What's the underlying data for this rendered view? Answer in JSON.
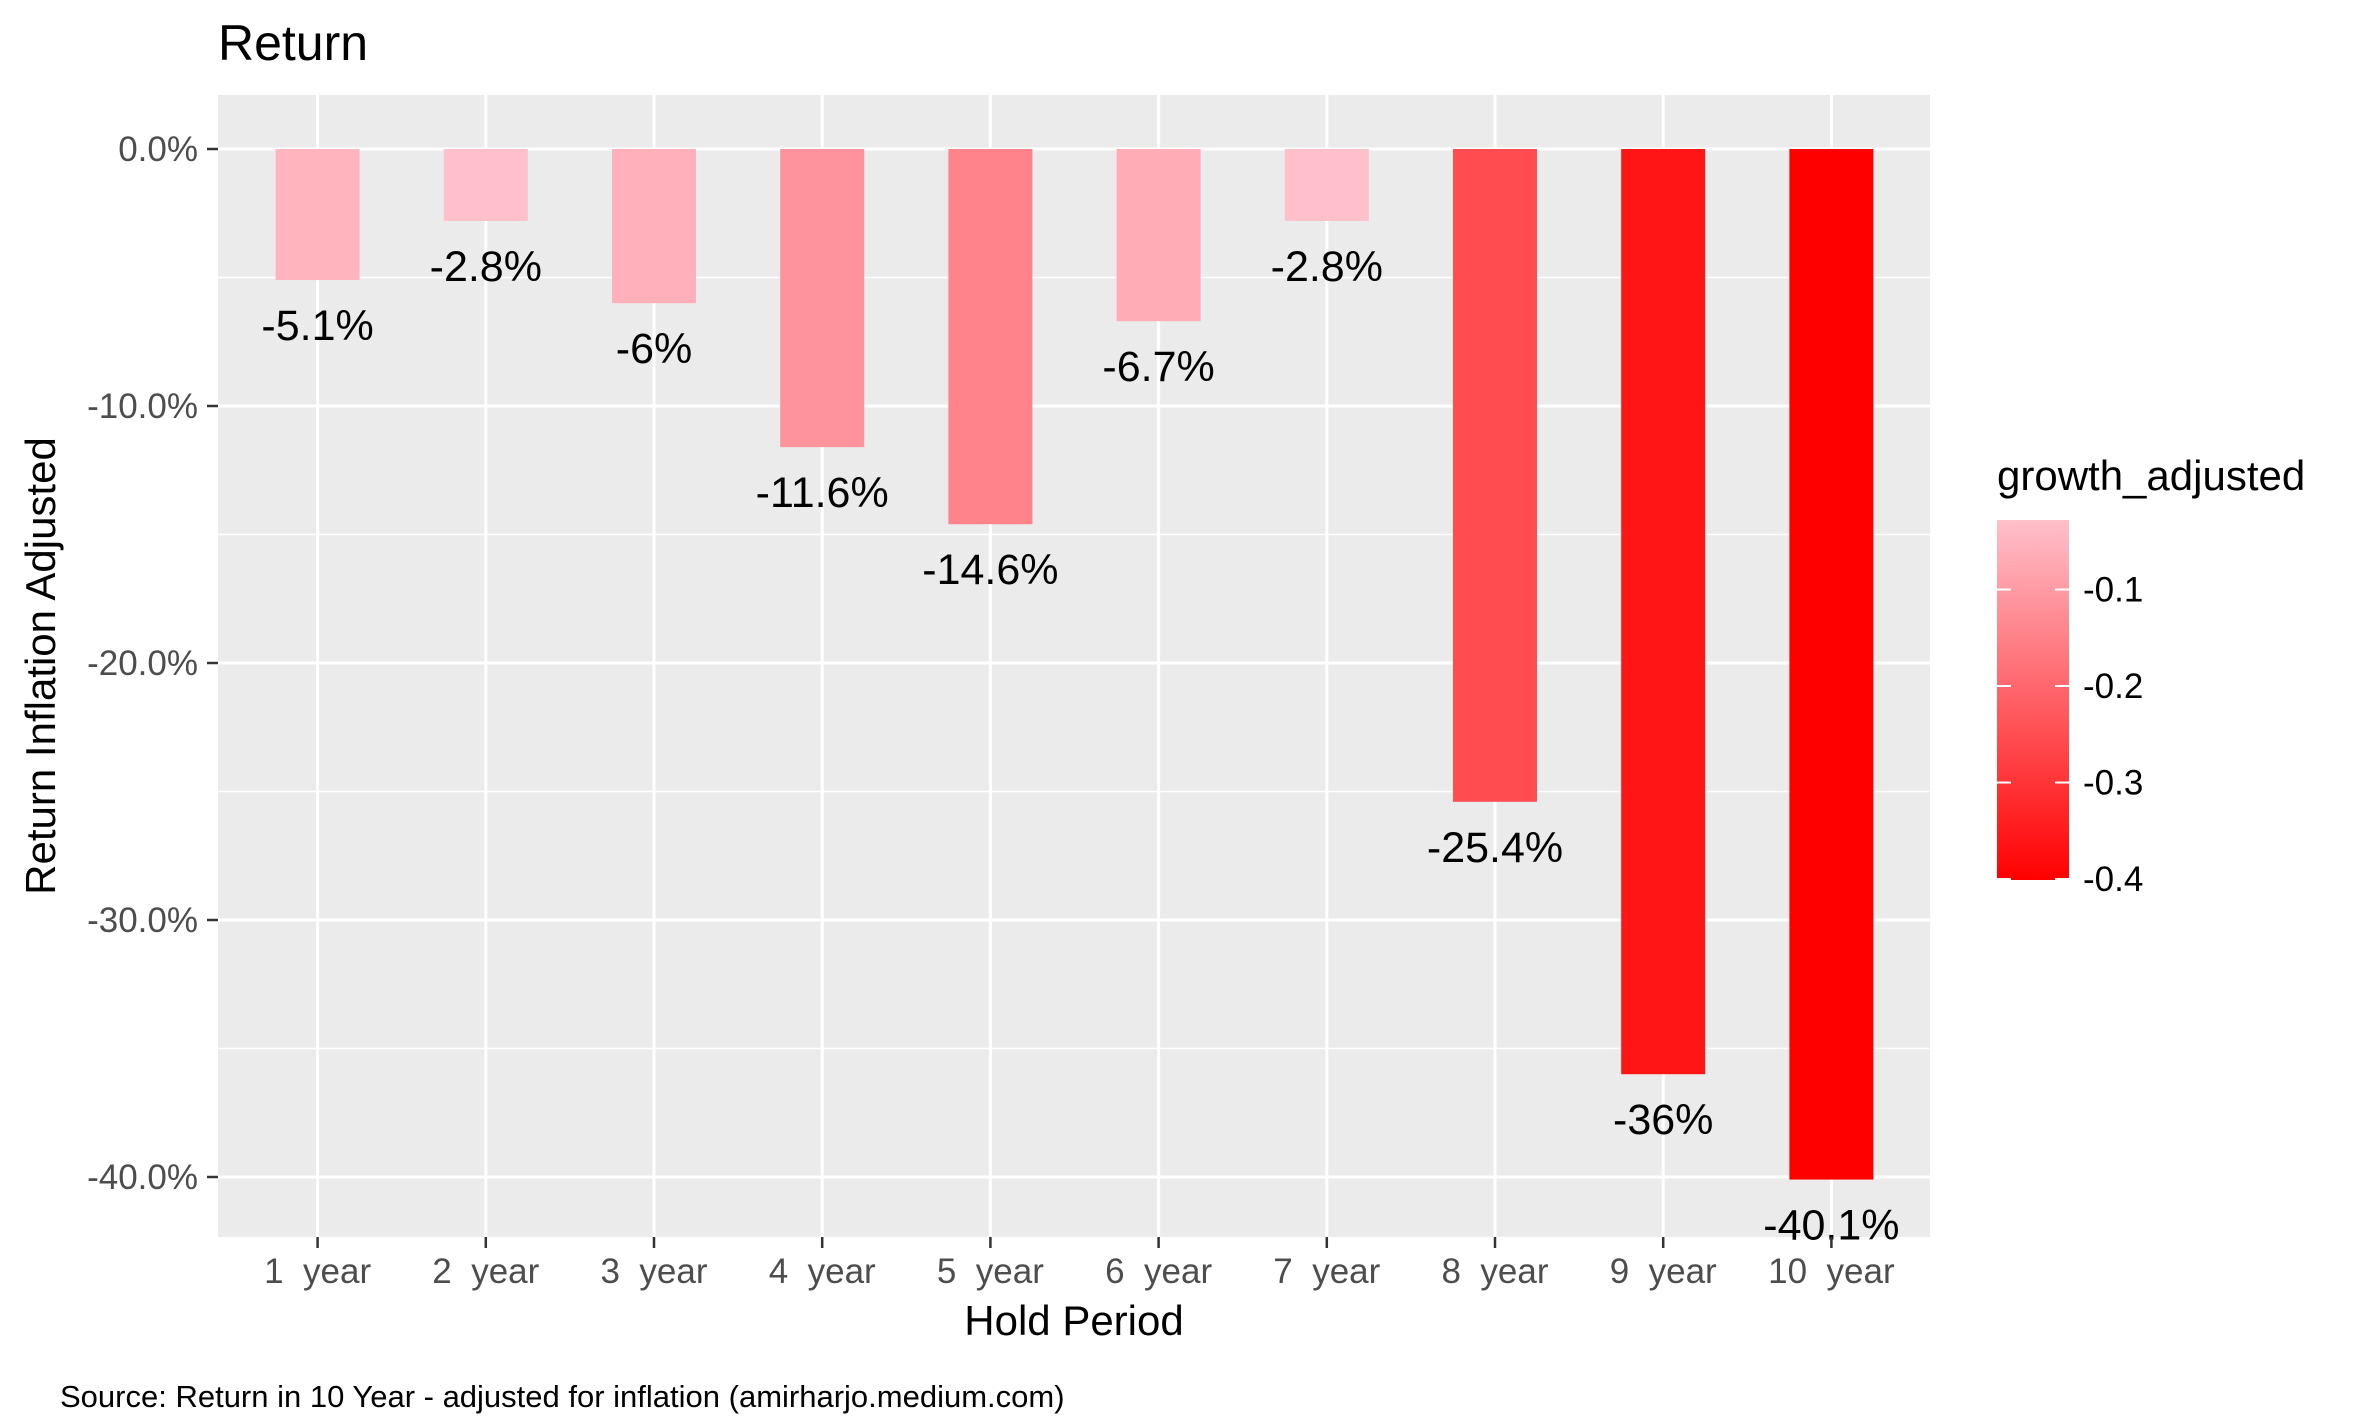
{
  "colors": {
    "panel_background": "#EBEBEB",
    "grid_line": "#FFFFFF",
    "tick_text": "#4D4D4D",
    "gradient_low": "#FF0000",
    "gradient_high": "#FFC0CB"
  },
  "chart_data": {
    "type": "bar",
    "title": "Return",
    "xlabel": "Hold Period",
    "ylabel": "Return Inflation Adjusted",
    "categories": [
      "1  year",
      "2  year",
      "3  year",
      "4  year",
      "5  year",
      "6  year",
      "7  year",
      "8  year",
      "9  year",
      "10  year"
    ],
    "values": [
      -5.1,
      -2.8,
      -6.0,
      -11.6,
      -14.6,
      -6.7,
      -2.8,
      -25.4,
      -36.0,
      -40.1
    ],
    "value_labels": [
      "-5.1%",
      "-2.8%",
      "-6%",
      "-11.6%",
      "-14.6%",
      "-6.7%",
      "-2.8%",
      "-25.4%",
      "-36%",
      "-40.1%"
    ],
    "ylim": [
      -42,
      2
    ],
    "yticks": [
      0,
      -10,
      -20,
      -30,
      -40
    ],
    "ytick_labels": [
      "0.0%",
      "-10.0%",
      "-20.0%",
      "-30.0%",
      "-40.0%"
    ],
    "grid": true,
    "legend": {
      "title": "growth_adjusted",
      "placement": "right",
      "range": [
        -0.401,
        -0.028
      ],
      "ticks": [
        -0.1,
        -0.2,
        -0.3,
        -0.4
      ],
      "tick_labels": [
        "-0.1",
        "-0.2",
        "-0.3",
        "-0.4"
      ]
    },
    "caption": "Source: Return in 10 Year - adjusted for inflation (amirharjo.medium.com)"
  }
}
